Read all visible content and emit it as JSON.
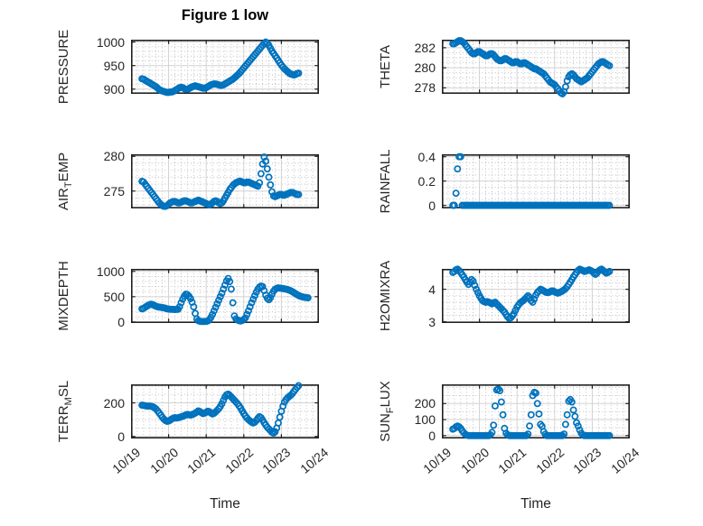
{
  "title": "Figure 1 low",
  "xlabel": "Time",
  "colors": {
    "marker": "#0072BD",
    "frame": "#212121",
    "tick_label": "#262626",
    "major_grid": "#d2d2d2",
    "minor_grid": "#b3b3b3",
    "background": "#ffffff"
  },
  "x_axis": {
    "tick_labels": [
      "10/19",
      "10/20",
      "10/21",
      "10/22",
      "10/23",
      "10/24"
    ],
    "lim_days": [
      0,
      5
    ],
    "minor_per_day": 6
  },
  "chart_data": [
    {
      "type": "scatter",
      "name": "PRESSURE",
      "ylabel_pre": "PRESSURE",
      "ylabel_sub": "",
      "ylabel_post": "",
      "yticks": [
        900,
        950,
        1000
      ],
      "ytick_labels": [
        "900",
        "950",
        "1000"
      ],
      "ylim": [
        890,
        1005
      ],
      "yminor": 10,
      "start_hour": 7,
      "values": [
        922,
        921,
        919,
        917,
        915,
        913,
        911,
        909,
        907,
        905,
        902,
        899,
        897,
        896,
        895,
        894,
        893,
        893,
        894,
        894,
        895,
        897,
        899,
        901,
        903,
        904,
        903,
        901,
        900,
        900,
        901,
        903,
        905,
        906,
        907,
        906,
        905,
        904,
        903,
        902,
        902,
        903,
        905,
        907,
        909,
        910,
        911,
        911,
        910,
        909,
        908,
        908,
        909,
        911,
        913,
        915,
        917,
        919,
        921,
        924,
        927,
        930,
        933,
        937,
        941,
        945,
        949,
        953,
        957,
        961,
        965,
        969,
        973,
        977,
        981,
        985,
        989,
        993,
        997,
        1000,
        998,
        993,
        987,
        981,
        976,
        971,
        966,
        961,
        956,
        951,
        947,
        943,
        940,
        937,
        934,
        932,
        931,
        930,
        931,
        933,
        934
      ]
    },
    {
      "type": "scatter",
      "name": "THETA",
      "ylabel_pre": "THETA",
      "ylabel_sub": "",
      "ylabel_post": "",
      "yticks": [
        278,
        280,
        282
      ],
      "ytick_labels": [
        "278",
        "280",
        "282"
      ],
      "ylim": [
        277.4,
        282.8
      ],
      "yminor": 0.5,
      "start_hour": 7,
      "values": [
        282.4,
        282.4,
        282.5,
        282.6,
        282.7,
        282.7,
        282.6,
        282.5,
        282.3,
        282.1,
        281.9,
        281.7,
        281.5,
        281.4,
        281.4,
        281.5,
        281.6,
        281.6,
        281.5,
        281.4,
        281.3,
        281.2,
        281.2,
        281.3,
        281.4,
        281.4,
        281.3,
        281.1,
        280.9,
        280.8,
        280.7,
        280.7,
        280.8,
        280.9,
        280.9,
        280.8,
        280.7,
        280.6,
        280.5,
        280.5,
        280.6,
        280.6,
        280.5,
        280.4,
        280.4,
        280.5,
        280.5,
        280.4,
        280.3,
        280.2,
        280.1,
        280.0,
        279.9,
        279.9,
        279.8,
        279.7,
        279.6,
        279.5,
        279.4,
        279.2,
        279.0,
        278.8,
        278.6,
        278.5,
        278.4,
        278.3,
        278.1,
        277.9,
        277.7,
        277.5,
        277.4,
        277.6,
        278.1,
        278.7,
        279.1,
        279.3,
        279.4,
        279.3,
        279.1,
        278.9,
        278.8,
        278.7,
        278.6,
        278.7,
        278.8,
        278.9,
        279.0,
        279.2,
        279.4,
        279.6,
        279.8,
        280.0,
        280.2,
        280.4,
        280.5,
        280.6,
        280.6,
        280.5,
        280.4,
        280.3,
        280.2
      ]
    },
    {
      "type": "scatter",
      "name": "AIR_TEMP",
      "ylabel_pre": "AIR",
      "ylabel_sub": "T",
      "ylabel_post": "EMP",
      "yticks": [
        275,
        280
      ],
      "ytick_labels": [
        "275",
        "280"
      ],
      "ylim": [
        272.5,
        280.3
      ],
      "yminor": 1,
      "start_hour": 7,
      "values": [
        276.4,
        276.3,
        276.0,
        275.7,
        275.4,
        275.1,
        274.8,
        274.5,
        274.2,
        273.9,
        273.6,
        273.3,
        273.1,
        272.9,
        272.8,
        272.8,
        272.9,
        273.1,
        273.3,
        273.4,
        273.5,
        273.5,
        273.4,
        273.3,
        273.3,
        273.4,
        273.5,
        273.6,
        273.6,
        273.5,
        273.4,
        273.3,
        273.3,
        273.4,
        273.5,
        273.6,
        273.7,
        273.6,
        273.5,
        273.4,
        273.3,
        273.2,
        273.1,
        273.0,
        273.1,
        273.3,
        273.5,
        273.6,
        273.5,
        273.3,
        273.2,
        273.3,
        273.6,
        274.0,
        274.4,
        274.8,
        275.2,
        275.5,
        275.8,
        276.0,
        276.2,
        276.3,
        276.4,
        276.4,
        276.3,
        276.2,
        276.2,
        276.3,
        276.3,
        276.2,
        276.1,
        276.0,
        275.9,
        275.8,
        275.7,
        276.2,
        277.5,
        278.9,
        279.9,
        279.3,
        278.2,
        277.0,
        275.9,
        274.9,
        274.3,
        274.2,
        274.3,
        274.4,
        274.5,
        274.5,
        274.4,
        274.4,
        274.5,
        274.6,
        274.7,
        274.8,
        274.8,
        274.7,
        274.6,
        274.5,
        274.5
      ]
    },
    {
      "type": "scatter",
      "name": "RAINFALL",
      "ylabel_pre": "RAINFALL",
      "ylabel_sub": "",
      "ylabel_post": "",
      "yticks": [
        0,
        0.2,
        0.4
      ],
      "ytick_labels": [
        "0",
        "0.2",
        "0.4"
      ],
      "ylim": [
        -0.025,
        0.42
      ],
      "yminor": 0.05,
      "start_hour": 7,
      "values": [
        0,
        0,
        0.1,
        0.3,
        0.4,
        0.4,
        0,
        0,
        0,
        0,
        0,
        0,
        0,
        0,
        0,
        0,
        0,
        0,
        0,
        0,
        0,
        0,
        0,
        0,
        0,
        0,
        0,
        0,
        0,
        0,
        0,
        0,
        0,
        0,
        0,
        0,
        0,
        0,
        0,
        0,
        0,
        0,
        0,
        0,
        0,
        0,
        0,
        0,
        0,
        0,
        0,
        0,
        0,
        0,
        0,
        0,
        0,
        0,
        0,
        0,
        0,
        0,
        0,
        0,
        0,
        0,
        0,
        0,
        0,
        0,
        0,
        0,
        0,
        0,
        0,
        0,
        0,
        0,
        0,
        0,
        0,
        0,
        0,
        0,
        0,
        0,
        0,
        0,
        0,
        0,
        0,
        0,
        0,
        0,
        0,
        0,
        0,
        0,
        0,
        0,
        0
      ]
    },
    {
      "type": "scatter",
      "name": "MIXDEPTH",
      "ylabel_pre": "MIXDEPTH",
      "ylabel_sub": "",
      "ylabel_post": "",
      "yticks": [
        0,
        500,
        1000
      ],
      "ytick_labels": [
        "0",
        "500",
        "1000"
      ],
      "ylim": [
        -20,
        1050
      ],
      "yminor": 100,
      "start_hour": 7,
      "values": [
        260,
        270,
        290,
        310,
        330,
        345,
        350,
        340,
        325,
        310,
        300,
        295,
        290,
        285,
        280,
        270,
        260,
        255,
        250,
        250,
        248,
        246,
        248,
        250,
        300,
        380,
        450,
        510,
        550,
        540,
        510,
        460,
        390,
        300,
        170,
        60,
        25,
        15,
        10,
        10,
        10,
        12,
        20,
        40,
        90,
        150,
        220,
        290,
        360,
        430,
        500,
        570,
        650,
        730,
        810,
        860,
        800,
        650,
        380,
        120,
        60,
        40,
        25,
        20,
        30,
        50,
        80,
        150,
        220,
        300,
        380,
        450,
        520,
        590,
        650,
        690,
        710,
        700,
        620,
        530,
        470,
        440,
        480,
        550,
        610,
        645,
        665,
        675,
        670,
        665,
        660,
        655,
        650,
        640,
        630,
        615,
        600,
        580,
        560,
        540,
        525,
        510,
        500,
        492,
        486,
        482,
        478
      ]
    },
    {
      "type": "scatter",
      "name": "H2OMIXRA",
      "ylabel_pre": "H2OMIXRA",
      "ylabel_sub": "",
      "ylabel_post": "",
      "yticks": [
        3,
        4
      ],
      "ytick_labels": [
        "3",
        "4"
      ],
      "ylim": [
        2.96,
        4.63
      ],
      "yminor": 0.2,
      "start_hour": 7,
      "values": [
        4.52,
        4.55,
        4.6,
        4.62,
        4.58,
        4.52,
        4.45,
        4.38,
        4.3,
        4.22,
        4.15,
        4.22,
        4.3,
        4.25,
        4.12,
        4.0,
        3.9,
        3.8,
        3.72,
        3.65,
        3.62,
        3.6,
        3.62,
        3.6,
        3.58,
        3.55,
        3.58,
        3.6,
        3.55,
        3.5,
        3.45,
        3.4,
        3.35,
        3.3,
        3.22,
        3.15,
        3.1,
        3.12,
        3.18,
        3.25,
        3.35,
        3.45,
        3.52,
        3.58,
        3.62,
        3.65,
        3.7,
        3.75,
        3.8,
        3.75,
        3.65,
        3.6,
        3.7,
        3.82,
        3.9,
        3.95,
        4.0,
        3.98,
        3.95,
        3.92,
        3.9,
        3.9,
        3.92,
        3.95,
        3.95,
        3.92,
        3.9,
        3.88,
        3.9,
        3.92,
        3.95,
        3.98,
        4.02,
        4.08,
        4.15,
        4.22,
        4.3,
        4.38,
        4.45,
        4.52,
        4.58,
        4.62,
        4.6,
        4.58,
        4.55,
        4.56,
        4.58,
        4.6,
        4.58,
        4.55,
        4.5,
        4.46,
        4.5,
        4.56,
        4.6,
        4.62,
        4.58,
        4.54,
        4.5,
        4.52,
        4.55
      ]
    },
    {
      "type": "scatter",
      "name": "TERR_MSL",
      "ylabel_pre": "TERR",
      "ylabel_sub": "M",
      "ylabel_post": "SL",
      "yticks": [
        0,
        200
      ],
      "ytick_labels": [
        "0",
        "200"
      ],
      "ylim": [
        -12,
        310
      ],
      "yminor": 50,
      "start_hour": 7,
      "values": [
        186,
        185,
        183,
        181,
        180,
        181,
        179,
        176,
        171,
        163,
        152,
        140,
        127,
        114,
        103,
        95,
        90,
        92,
        97,
        104,
        109,
        112,
        110,
        111,
        114,
        117,
        120,
        124,
        128,
        131,
        129,
        127,
        130,
        134,
        139,
        145,
        152,
        148,
        141,
        136,
        139,
        144,
        150,
        147,
        140,
        134,
        138,
        146,
        155,
        165,
        178,
        195,
        215,
        235,
        248,
        252,
        245,
        235,
        225,
        215,
        205,
        195,
        182,
        168,
        152,
        136,
        122,
        110,
        100,
        92,
        85,
        80,
        85,
        95,
        108,
        118,
        112,
        98,
        82,
        68,
        55,
        45,
        35,
        25,
        20,
        28,
        50,
        80,
        115,
        150,
        180,
        205,
        220,
        230,
        238,
        245,
        255,
        268,
        280,
        292,
        302
      ]
    },
    {
      "type": "scatter",
      "name": "SUN_FLUX",
      "ylabel_pre": "SUN",
      "ylabel_sub": "F",
      "ylabel_post": "LUX",
      "yticks": [
        0,
        100,
        200
      ],
      "ytick_labels": [
        "0",
        "100",
        "200"
      ],
      "ylim": [
        -18,
        320
      ],
      "yminor": 50,
      "start_hour": 7,
      "values": [
        40,
        45,
        55,
        60,
        55,
        45,
        30,
        18,
        8,
        3,
        0,
        0,
        0,
        0,
        0,
        0,
        0,
        0,
        0,
        0,
        0,
        0,
        0,
        0,
        5,
        20,
        65,
        185,
        285,
        290,
        280,
        210,
        130,
        45,
        15,
        5,
        0,
        0,
        0,
        0,
        0,
        0,
        0,
        0,
        0,
        0,
        0,
        0,
        10,
        60,
        130,
        250,
        270,
        265,
        200,
        135,
        70,
        58,
        25,
        8,
        0,
        0,
        0,
        0,
        0,
        0,
        0,
        0,
        0,
        0,
        0,
        10,
        70,
        130,
        215,
        225,
        210,
        160,
        120,
        80,
        60,
        35,
        15,
        5,
        0,
        0,
        0,
        0,
        0,
        0,
        0,
        0,
        0,
        0,
        0,
        0,
        0,
        0,
        0,
        0,
        0
      ]
    }
  ]
}
